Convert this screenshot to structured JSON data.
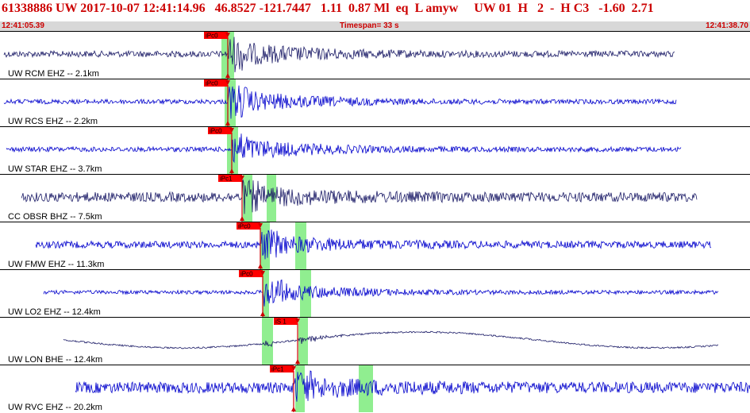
{
  "header": {
    "title": "61338886 UW 2017-10-07 12:41:14.96   46.8527 -121.7447   1.11  0.87 Ml  eq  L amyw     UW 01  H   2  -  H C3   -1.60  2.71",
    "start_time": "12:41:05.39",
    "timespan": "Timespan=  33 s",
    "end_time": "12:41:38.70"
  },
  "colors": {
    "header_text": "#cc0000",
    "subbar_bg": "#d8d8d8",
    "trace_blue": "#0000cc",
    "trace_dark": "#1a1a66",
    "pick_box": "#ff0000",
    "window_green": "#90ee90"
  },
  "traces": [
    {
      "label": "UW RCM EHZ -- 2.1km",
      "pick_label": "iPc0",
      "color": "dark"
    },
    {
      "label": "UW RCS EHZ -- 2.2km",
      "pick_label": "iPc0",
      "color": "blue"
    },
    {
      "label": "UW STAR EHZ -- 3.7km",
      "pick_label": "iPc0",
      "color": "blue"
    },
    {
      "label": "CC OBSR BHZ -- 7.5km",
      "pick_label": "iPc1",
      "color": "dark"
    },
    {
      "label": "UW FMW EHZ -- 11.3km",
      "pick_label": "iPc0",
      "color": "blue"
    },
    {
      "label": "UW LO2 EHZ -- 12.4km",
      "pick_label": "iPc0",
      "color": "blue"
    },
    {
      "label": "UW LON BHE -- 12.4km",
      "pick_label": "iS 1",
      "color": "dark"
    },
    {
      "label": "UW RVC EHZ -- 20.2km",
      "pick_label": "iPc1",
      "color": "blue"
    }
  ]
}
